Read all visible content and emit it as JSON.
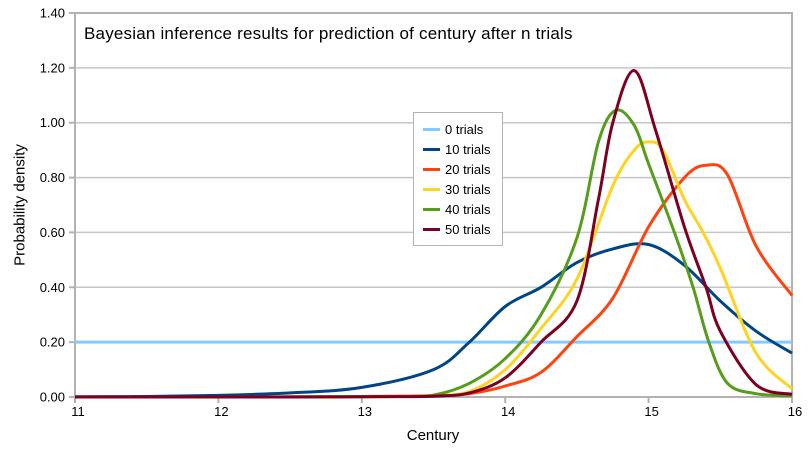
{
  "chart_data": {
    "type": "line",
    "title": "Bayesian inference results for prediction of century after n trials",
    "xlabel": "Century",
    "ylabel": "Probability density",
    "xlim": [
      11,
      16
    ],
    "ylim": [
      0,
      1.4
    ],
    "x_ticks": [
      "11",
      "12",
      "13",
      "14",
      "15",
      "16"
    ],
    "x_tick_values": [
      11,
      12,
      13,
      14,
      15,
      16
    ],
    "y_ticks": [
      "0.00",
      "0.20",
      "0.40",
      "0.60",
      "0.80",
      "1.00",
      "1.20",
      "1.40"
    ],
    "y_tick_values": [
      0,
      0.2,
      0.4,
      0.6,
      0.8,
      1.0,
      1.2,
      1.4
    ],
    "grid": "horizontal",
    "legend_position": "inside-top-center",
    "series": [
      {
        "name": "0 trials",
        "color": "#83CAFF",
        "points": [
          [
            11,
            0.2
          ],
          [
            12,
            0.2
          ],
          [
            13,
            0.2
          ],
          [
            14,
            0.2
          ],
          [
            15,
            0.2
          ],
          [
            16,
            0.2
          ]
        ]
      },
      {
        "name": "10 trials",
        "color": "#004586",
        "points": [
          [
            11,
            0.001
          ],
          [
            11.5,
            0.002
          ],
          [
            12,
            0.006
          ],
          [
            12.5,
            0.015
          ],
          [
            13,
            0.035
          ],
          [
            13.5,
            0.1
          ],
          [
            13.75,
            0.2
          ],
          [
            14,
            0.33
          ],
          [
            14.25,
            0.4
          ],
          [
            14.5,
            0.49
          ],
          [
            14.75,
            0.54
          ],
          [
            15,
            0.556
          ],
          [
            15.25,
            0.48
          ],
          [
            15.5,
            0.35
          ],
          [
            15.75,
            0.24
          ],
          [
            16,
            0.16
          ]
        ]
      },
      {
        "name": "20 trials",
        "color": "#FF420E",
        "points": [
          [
            11,
            0
          ],
          [
            12,
            0
          ],
          [
            12.5,
            0.001
          ],
          [
            13,
            0.002
          ],
          [
            13.5,
            0.005
          ],
          [
            13.75,
            0.012
          ],
          [
            14,
            0.04
          ],
          [
            14.25,
            0.09
          ],
          [
            14.5,
            0.22
          ],
          [
            14.75,
            0.36
          ],
          [
            15,
            0.62
          ],
          [
            15.25,
            0.8
          ],
          [
            15.4,
            0.845
          ],
          [
            15.55,
            0.81
          ],
          [
            15.75,
            0.55
          ],
          [
            16,
            0.37
          ]
        ]
      },
      {
        "name": "30 trials",
        "color": "#FFD320",
        "points": [
          [
            11,
            0
          ],
          [
            12.5,
            0
          ],
          [
            13,
            0.001
          ],
          [
            13.25,
            0.002
          ],
          [
            13.5,
            0.004
          ],
          [
            13.75,
            0.02
          ],
          [
            14,
            0.1
          ],
          [
            14.25,
            0.25
          ],
          [
            14.5,
            0.43
          ],
          [
            14.75,
            0.77
          ],
          [
            14.9,
            0.9
          ],
          [
            15,
            0.93
          ],
          [
            15.1,
            0.9
          ],
          [
            15.25,
            0.72
          ],
          [
            15.38,
            0.6
          ],
          [
            15.5,
            0.47
          ],
          [
            15.75,
            0.16
          ],
          [
            16,
            0.03
          ]
        ]
      },
      {
        "name": "40 trials",
        "color": "#579D1C",
        "points": [
          [
            11,
            0
          ],
          [
            12.5,
            0
          ],
          [
            13,
            0.001
          ],
          [
            13.25,
            0.002
          ],
          [
            13.5,
            0.007
          ],
          [
            13.75,
            0.05
          ],
          [
            14,
            0.14
          ],
          [
            14.25,
            0.3
          ],
          [
            14.5,
            0.58
          ],
          [
            14.65,
            0.93
          ],
          [
            14.77,
            1.045
          ],
          [
            14.9,
            0.99
          ],
          [
            15,
            0.85
          ],
          [
            15.18,
            0.6
          ],
          [
            15.31,
            0.4
          ],
          [
            15.42,
            0.2
          ],
          [
            15.55,
            0.05
          ],
          [
            15.75,
            0.012
          ],
          [
            16,
            0.004
          ]
        ]
      },
      {
        "name": "50 trials",
        "color": "#7E0021",
        "points": [
          [
            11,
            0
          ],
          [
            12.5,
            0
          ],
          [
            13,
            0.001
          ],
          [
            13.5,
            0.003
          ],
          [
            13.75,
            0.015
          ],
          [
            14,
            0.07
          ],
          [
            14.25,
            0.2
          ],
          [
            14.5,
            0.35
          ],
          [
            14.65,
            0.72
          ],
          [
            14.75,
            1.0
          ],
          [
            14.9,
            1.19
          ],
          [
            15.05,
            0.97
          ],
          [
            15.25,
            0.62
          ],
          [
            15.4,
            0.4
          ],
          [
            15.5,
            0.24
          ],
          [
            15.75,
            0.045
          ],
          [
            16,
            0.01
          ]
        ]
      }
    ]
  },
  "style": {
    "background": "#ffffff",
    "plot_border_color": "#b2b2b2",
    "gridline_color": "#c6c6c6",
    "tick_color": "#b2b2b2",
    "text_color": "#000000",
    "line_width": 3
  }
}
